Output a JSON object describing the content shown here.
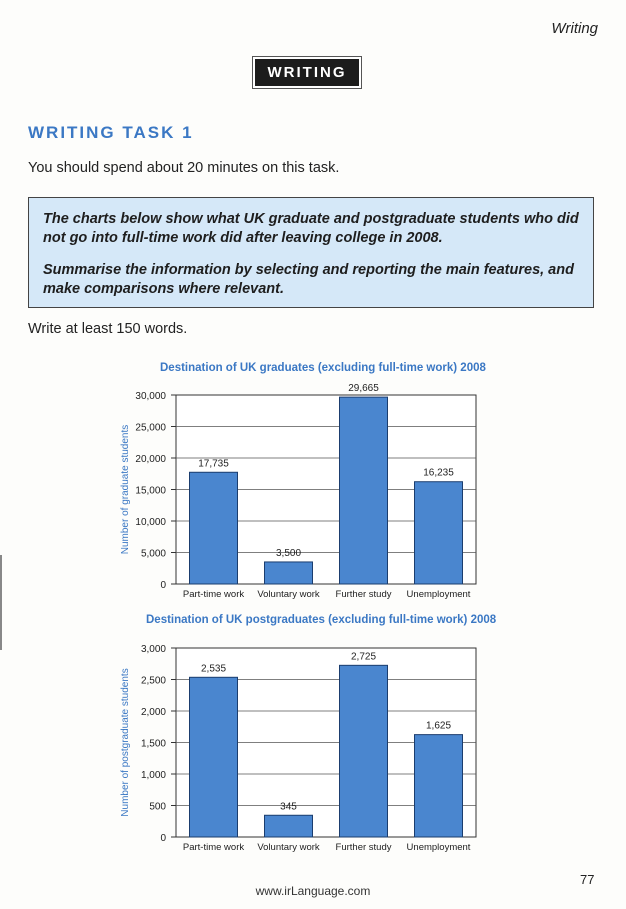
{
  "header": {
    "running_head": "Writing",
    "section_banner": "WRITING"
  },
  "task": {
    "title": "WRITING TASK 1",
    "instruction": "You should spend about 20 minutes on this task.",
    "prompt_line1": "The charts below show what UK graduate and postgraduate students who did not go into full-time work did after leaving college in 2008.",
    "prompt_line2": "Summarise the information by selecting and reporting the main features, and make comparisons where relevant.",
    "word_count": "Write at least 150 words."
  },
  "chart_data": [
    {
      "type": "bar",
      "title": "Destination of UK graduates (excluding full-time work) 2008",
      "ylabel": "Number of graduate students",
      "xlabel": "",
      "categories": [
        "Part-time work",
        "Voluntary work",
        "Further study",
        "Unemployment"
      ],
      "values": [
        17735,
        3500,
        29665,
        16235
      ],
      "value_labels": [
        "17,735",
        "3,500",
        "29,665",
        "16,235"
      ],
      "ylim": [
        0,
        30000
      ],
      "yticks": [
        0,
        5000,
        10000,
        15000,
        20000,
        25000,
        30000
      ],
      "ytick_labels": [
        "0",
        "5,000",
        "10,000",
        "15,000",
        "20,000",
        "25,000",
        "30,000"
      ],
      "grid": true,
      "bar_color": "#4a86cf"
    },
    {
      "type": "bar",
      "title": "Destination of UK postgraduates (excluding full-time work) 2008",
      "ylabel": "Number of postgraduate students",
      "xlabel": "",
      "categories": [
        "Part-time work",
        "Voluntary work",
        "Further study",
        "Unemployment"
      ],
      "values": [
        2535,
        345,
        2725,
        1625
      ],
      "value_labels": [
        "2,535",
        "345",
        "2,725",
        "1,625"
      ],
      "ylim": [
        0,
        3000
      ],
      "yticks": [
        0,
        500,
        1000,
        1500,
        2000,
        2500,
        3000
      ],
      "ytick_labels": [
        "0",
        "500",
        "1,000",
        "1,500",
        "2,000",
        "2,500",
        "3,000"
      ],
      "grid": true,
      "bar_color": "#4a86cf"
    }
  ],
  "footer": {
    "page_number": "77",
    "url": "www.irLanguage.com"
  }
}
